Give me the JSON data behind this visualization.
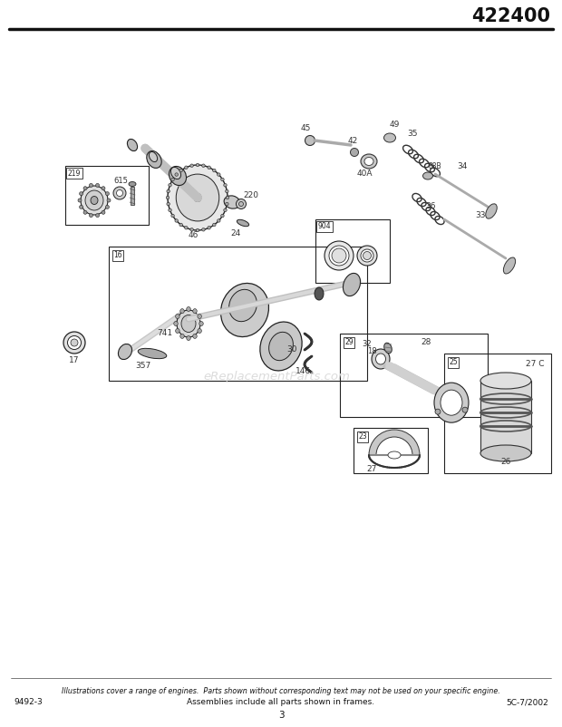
{
  "title_number": "422400",
  "bg_color": "#ffffff",
  "watermark": "eReplacementParts.com",
  "footer_italic": "Illustrations cover a range of engines.  Parts shown without corresponding text may not be used on your specific engine.",
  "footer_left": "9492-3",
  "footer_center": "Assemblies include all parts shown in frames.",
  "footer_right": "5C-7/2002",
  "footer_page": "3"
}
